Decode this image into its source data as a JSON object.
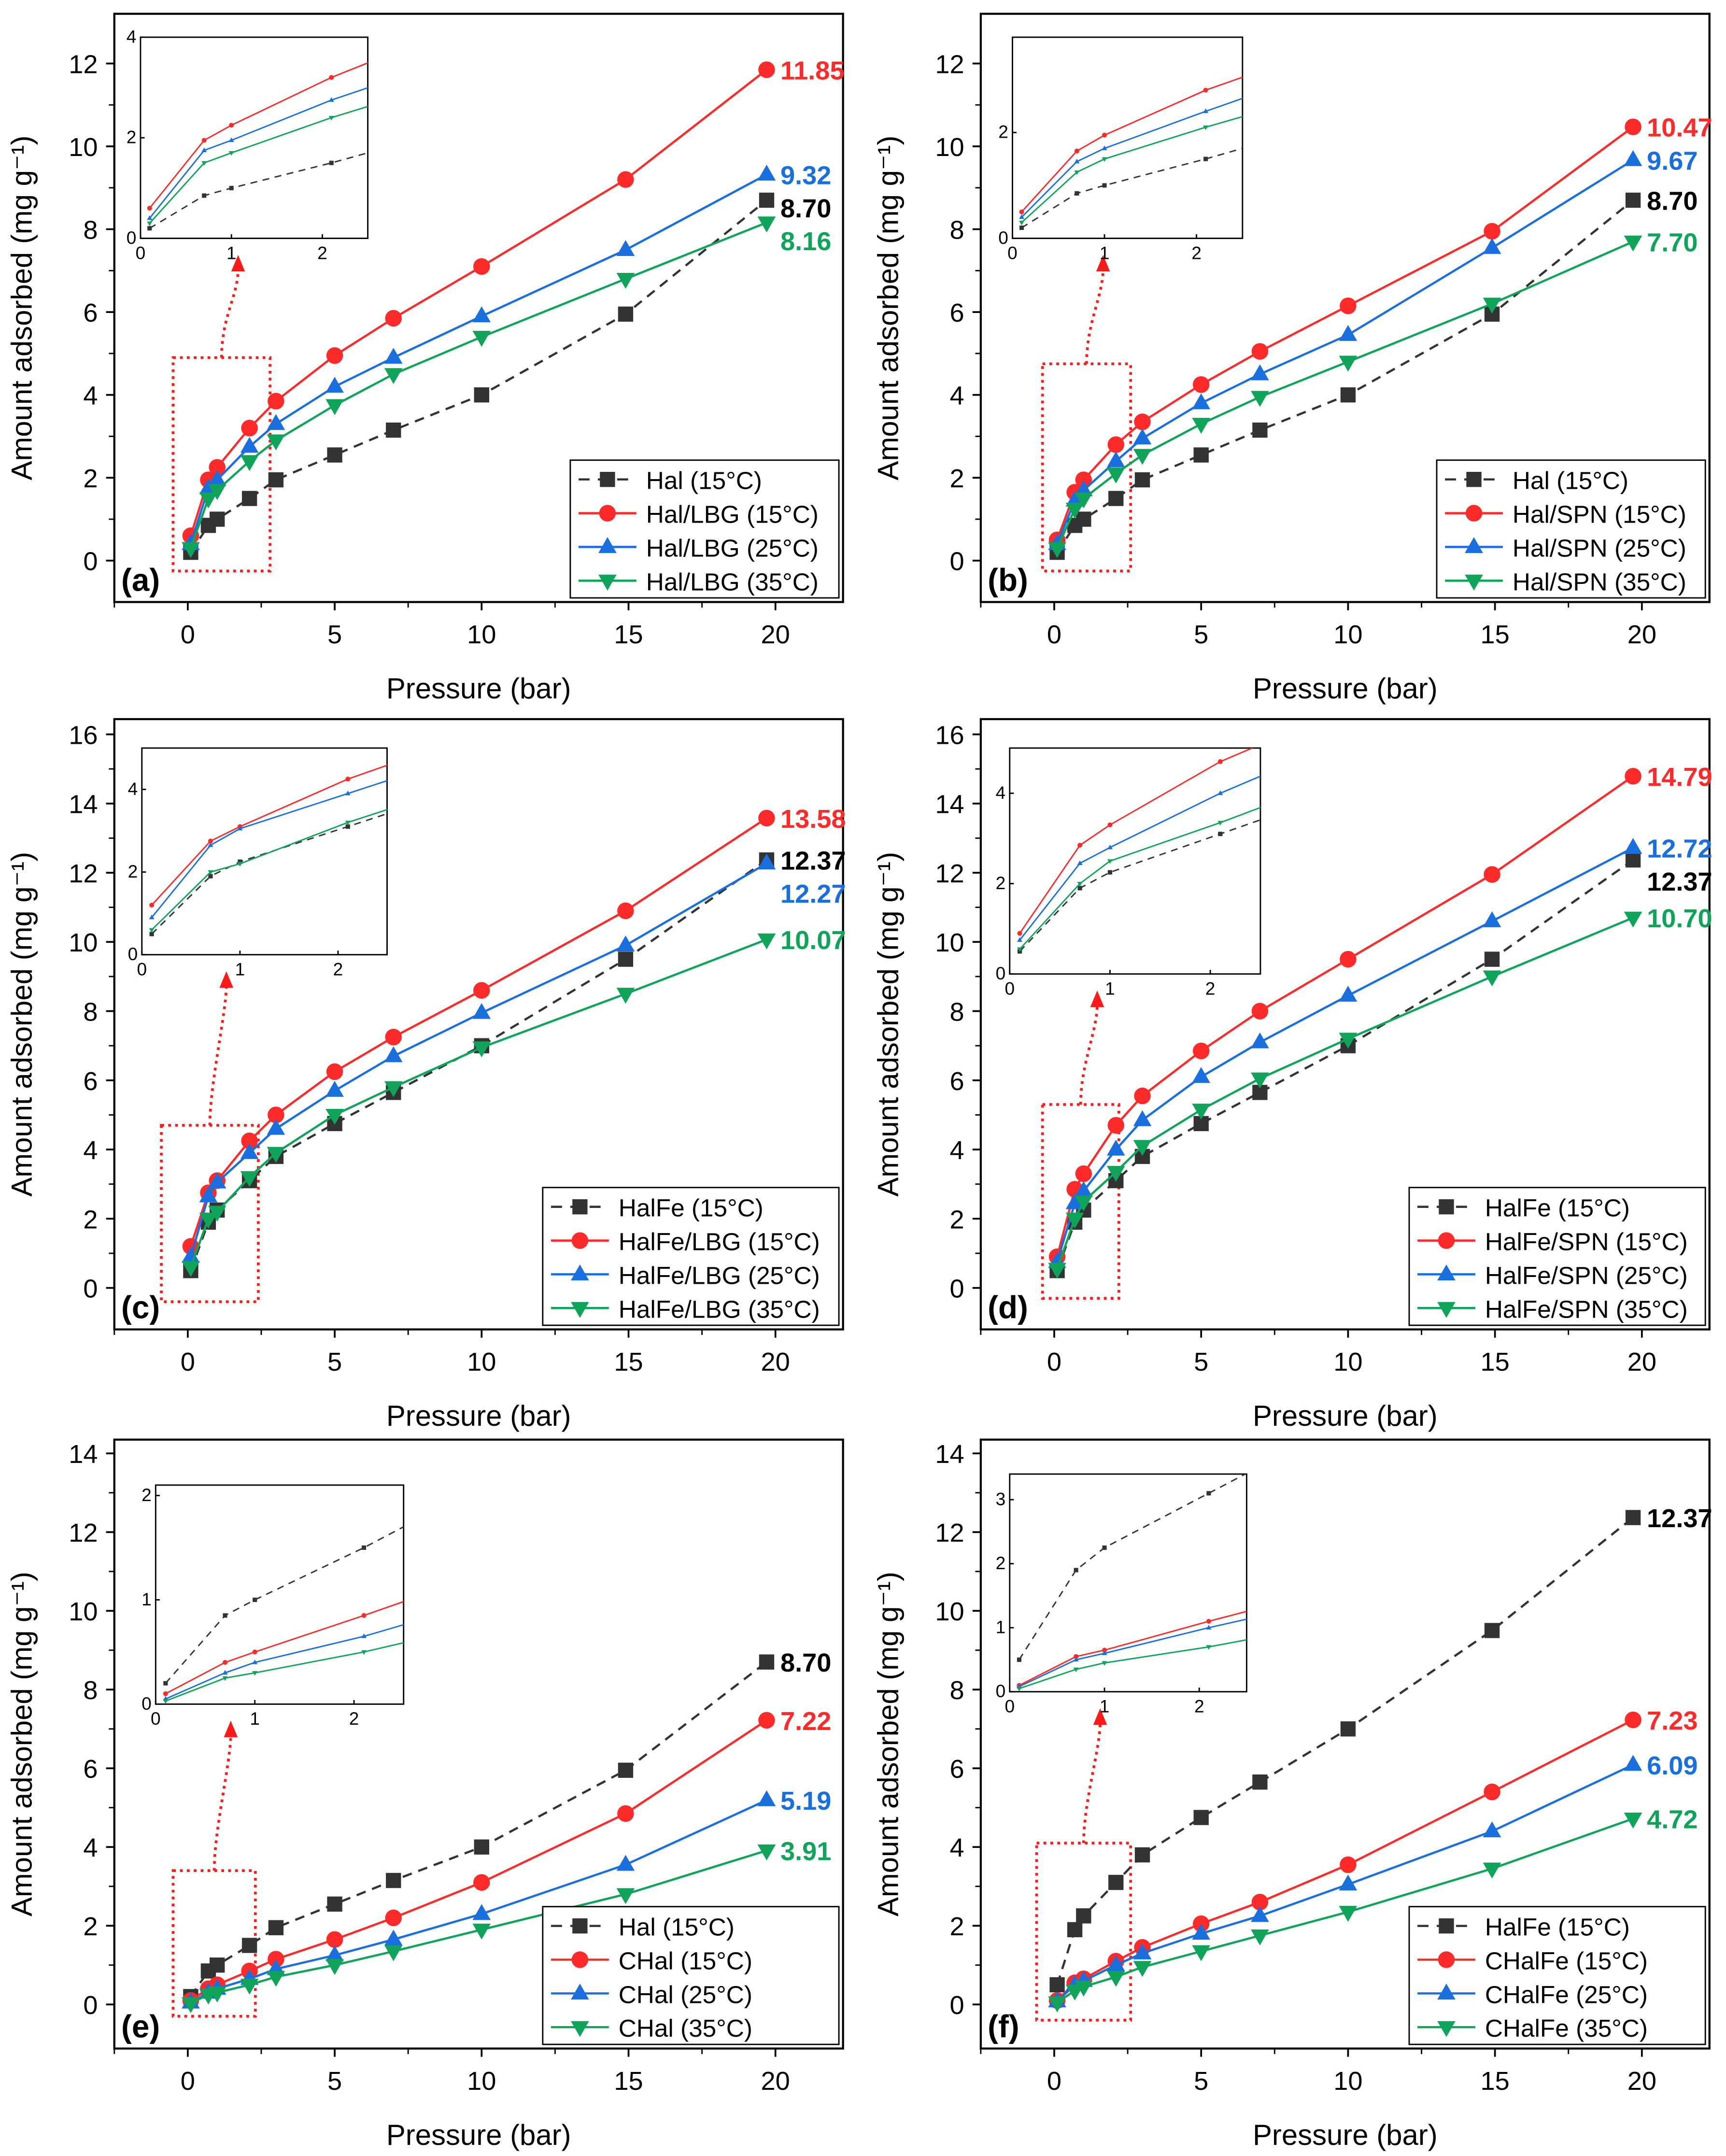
{
  "chart_data": [
    {
      "panel": "(a)",
      "type": "line",
      "xlabel": "Pressure (bar)",
      "ylabel": "Amount adsorbed (mg g⁻¹)",
      "xlim": [
        -2.5,
        22.3
      ],
      "ylim": [
        -1,
        13.2
      ],
      "xticks": [
        0,
        5,
        10,
        15,
        20
      ],
      "yticks": [
        0,
        2,
        4,
        6,
        8,
        10,
        12
      ],
      "x": [
        0.1,
        0.7,
        1.0,
        2.1,
        3.0,
        5.0,
        7.0,
        10.0,
        14.9,
        19.7
      ],
      "series": [
        {
          "name": "Hal (15°C)",
          "color": "#333333",
          "marker": "square",
          "dashed": true,
          "values": [
            0.2,
            0.85,
            1.0,
            1.5,
            1.95,
            2.55,
            3.15,
            4.0,
            5.95,
            8.7
          ],
          "end_label": "8.70"
        },
        {
          "name": "Hal/LBG (15°C)",
          "color": "#ff2a2a",
          "marker": "circle",
          "values": [
            0.6,
            1.95,
            2.25,
            3.2,
            3.85,
            4.95,
            5.85,
            7.1,
            9.2,
            11.85
          ],
          "end_label": "11.85"
        },
        {
          "name": "Hal/LBG (25°C)",
          "color": "#1a6fdf",
          "marker": "triangle-up",
          "values": [
            0.4,
            1.75,
            1.95,
            2.75,
            3.3,
            4.2,
            4.9,
            5.9,
            7.5,
            9.32
          ],
          "end_label": "9.32"
        },
        {
          "name": "Hal/LBG (35°C)",
          "color": "#10a35a",
          "marker": "triangle-down",
          "values": [
            0.3,
            1.5,
            1.7,
            2.4,
            2.9,
            3.75,
            4.5,
            5.4,
            6.8,
            8.16
          ],
          "end_label": "8.16"
        }
      ],
      "inset": {
        "xlim": [
          0,
          2.5
        ],
        "ylim": [
          0,
          4
        ],
        "xticks": [
          0,
          1,
          2
        ],
        "yticks": [
          0,
          2,
          4
        ]
      },
      "legend": "bottom-right"
    },
    {
      "panel": "(b)",
      "type": "line",
      "xlabel": "Pressure (bar)",
      "ylabel": "Amount adsorbed (mg g⁻¹)",
      "xlim": [
        -2.5,
        22.3
      ],
      "ylim": [
        -1,
        13.2
      ],
      "xticks": [
        0,
        5,
        10,
        15,
        20
      ],
      "yticks": [
        0,
        2,
        4,
        6,
        8,
        10,
        12
      ],
      "x": [
        0.1,
        0.7,
        1.0,
        2.1,
        3.0,
        5.0,
        7.0,
        10.0,
        14.9,
        19.7
      ],
      "series": [
        {
          "name": "Hal (15°C)",
          "color": "#333333",
          "marker": "square",
          "dashed": true,
          "values": [
            0.2,
            0.85,
            1.0,
            1.5,
            1.95,
            2.55,
            3.15,
            4.0,
            5.95,
            8.7
          ],
          "end_label": "8.70"
        },
        {
          "name": "Hal/SPN (15°C)",
          "color": "#ff2a2a",
          "marker": "circle",
          "values": [
            0.5,
            1.65,
            1.95,
            2.8,
            3.35,
            4.25,
            5.05,
            6.15,
            7.95,
            10.47
          ],
          "end_label": "10.47"
        },
        {
          "name": "Hal/SPN (25°C)",
          "color": "#1a6fdf",
          "marker": "triangle-up",
          "values": [
            0.4,
            1.45,
            1.7,
            2.4,
            2.95,
            3.8,
            4.5,
            5.45,
            7.55,
            9.67
          ],
          "end_label": "9.67"
        },
        {
          "name": "Hal/SPN (35°C)",
          "color": "#10a35a",
          "marker": "triangle-down",
          "values": [
            0.3,
            1.25,
            1.5,
            2.1,
            2.55,
            3.3,
            3.95,
            4.8,
            6.2,
            7.7
          ],
          "end_label": "7.70"
        }
      ],
      "inset": {
        "xlim": [
          0,
          2.5
        ],
        "ylim": [
          0,
          3.8
        ],
        "xticks": [
          0,
          1,
          2
        ],
        "yticks": [
          0,
          2
        ]
      },
      "legend": "bottom-right"
    },
    {
      "panel": "(c)",
      "type": "line",
      "xlabel": "Pressure (bar)",
      "ylabel": "Amount adsorbed (mg g⁻¹)",
      "xlim": [
        -2.5,
        22.3
      ],
      "ylim": [
        -1.2,
        16.44
      ],
      "xticks": [
        0,
        5,
        10,
        15,
        20
      ],
      "yticks": [
        0,
        2,
        4,
        6,
        8,
        10,
        12,
        14,
        16
      ],
      "x": [
        0.1,
        0.7,
        1.0,
        2.1,
        3.0,
        5.0,
        7.0,
        10.0,
        14.9,
        19.7
      ],
      "series": [
        {
          "name": "HalFe (15°C)",
          "color": "#333333",
          "marker": "square",
          "dashed": true,
          "values": [
            0.5,
            1.9,
            2.25,
            3.1,
            3.8,
            4.75,
            5.65,
            7.0,
            9.5,
            12.37
          ],
          "end_label": "12.37"
        },
        {
          "name": "HalFe/LBG (15°C)",
          "color": "#ff2a2a",
          "marker": "circle",
          "values": [
            1.2,
            2.75,
            3.1,
            4.25,
            5.0,
            6.25,
            7.25,
            8.6,
            10.9,
            13.58
          ],
          "end_label": "13.58"
        },
        {
          "name": "HalFe/LBG (25°C)",
          "color": "#1a6fdf",
          "marker": "triangle-up",
          "values": [
            0.9,
            2.65,
            3.05,
            3.9,
            4.6,
            5.7,
            6.7,
            7.95,
            9.9,
            12.27
          ],
          "end_label": "12.27"
        },
        {
          "name": "HalFe/LBG (35°C)",
          "color": "#10a35a",
          "marker": "triangle-down",
          "values": [
            0.6,
            2.0,
            2.2,
            3.2,
            3.9,
            5.0,
            5.8,
            6.95,
            8.5,
            10.07
          ],
          "end_label": "10.07"
        }
      ],
      "inset": {
        "xlim": [
          0,
          2.5
        ],
        "ylim": [
          0,
          5
        ],
        "xticks": [
          0,
          1,
          2
        ],
        "yticks": [
          0,
          2,
          4
        ]
      },
      "legend": "bottom-right"
    },
    {
      "panel": "(d)",
      "type": "line",
      "xlabel": "Pressure (bar)",
      "ylabel": "Amount adsorbed (mg g⁻¹)",
      "xlim": [
        -2.5,
        22.3
      ],
      "ylim": [
        -1.2,
        16.44
      ],
      "xticks": [
        0,
        5,
        10,
        15,
        20
      ],
      "yticks": [
        0,
        2,
        4,
        6,
        8,
        10,
        12,
        14,
        16
      ],
      "x": [
        0.1,
        0.7,
        1.0,
        2.1,
        3.0,
        5.0,
        7.0,
        10.0,
        14.9,
        19.7
      ],
      "series": [
        {
          "name": "HalFe (15°C)",
          "color": "#333333",
          "marker": "square",
          "dashed": true,
          "values": [
            0.5,
            1.9,
            2.25,
            3.1,
            3.8,
            4.75,
            5.65,
            7.0,
            9.5,
            12.37
          ],
          "end_label": "12.37"
        },
        {
          "name": "HalFe/SPN (15°C)",
          "color": "#ff2a2a",
          "marker": "circle",
          "values": [
            0.9,
            2.85,
            3.3,
            4.7,
            5.55,
            6.85,
            8.0,
            9.5,
            11.95,
            14.79
          ],
          "end_label": "14.79"
        },
        {
          "name": "HalFe/SPN (25°C)",
          "color": "#1a6fdf",
          "marker": "triangle-up",
          "values": [
            0.75,
            2.45,
            2.8,
            4.0,
            4.85,
            6.1,
            7.1,
            8.45,
            10.6,
            12.72
          ],
          "end_label": "12.72"
        },
        {
          "name": "HalFe/SPN (35°C)",
          "color": "#10a35a",
          "marker": "triangle-down",
          "values": [
            0.55,
            2.0,
            2.5,
            3.35,
            4.1,
            5.15,
            6.05,
            7.2,
            9.0,
            10.7
          ],
          "end_label": "10.70"
        }
      ],
      "inset": {
        "xlim": [
          0,
          2.5
        ],
        "ylim": [
          0,
          5
        ],
        "xticks": [
          0,
          1,
          2
        ],
        "yticks": [
          0,
          2,
          4
        ]
      },
      "legend": "bottom-right"
    },
    {
      "panel": "(e)",
      "type": "line",
      "xlabel": "Pressure (bar)",
      "ylabel": "Amount adsorbed (mg g⁻¹)",
      "xlim": [
        -2.5,
        22.3
      ],
      "ylim": [
        -1.12,
        14.35
      ],
      "xticks": [
        0,
        5,
        10,
        15,
        20
      ],
      "yticks": [
        0,
        2,
        4,
        6,
        8,
        10,
        12,
        14
      ],
      "x": [
        0.1,
        0.7,
        1.0,
        2.1,
        3.0,
        5.0,
        7.0,
        10.0,
        14.9,
        19.7
      ],
      "series": [
        {
          "name": "Hal (15°C)",
          "color": "#333333",
          "marker": "square",
          "dashed": true,
          "values": [
            0.2,
            0.85,
            1.0,
            1.5,
            1.95,
            2.55,
            3.15,
            4.0,
            5.95,
            8.7
          ],
          "end_label": "8.70"
        },
        {
          "name": "CHal (15°C)",
          "color": "#ff2a2a",
          "marker": "circle",
          "values": [
            0.1,
            0.4,
            0.5,
            0.85,
            1.15,
            1.65,
            2.2,
            3.1,
            4.85,
            7.22
          ],
          "end_label": "7.22"
        },
        {
          "name": "CHal (25°C)",
          "color": "#1a6fdf",
          "marker": "triangle-up",
          "values": [
            0.05,
            0.3,
            0.4,
            0.65,
            0.9,
            1.25,
            1.65,
            2.3,
            3.55,
            5.19
          ],
          "end_label": "5.19"
        },
        {
          "name": "CHal (35°C)",
          "color": "#10a35a",
          "marker": "triangle-down",
          "values": [
            0.03,
            0.25,
            0.3,
            0.5,
            0.7,
            1.0,
            1.35,
            1.9,
            2.8,
            3.91
          ],
          "end_label": "3.91"
        }
      ],
      "inset": {
        "xlim": [
          0,
          2.5
        ],
        "ylim": [
          0,
          2.1
        ],
        "xticks": [
          0,
          1,
          2
        ],
        "yticks": [
          0,
          1,
          2
        ]
      },
      "legend": "bottom-right"
    },
    {
      "panel": "(f)",
      "type": "line",
      "xlabel": "Pressure (bar)",
      "ylabel": "Amount adsorbed (mg g⁻¹)",
      "xlim": [
        -2.5,
        22.3
      ],
      "ylim": [
        -1.12,
        14.35
      ],
      "xticks": [
        0,
        5,
        10,
        15,
        20
      ],
      "yticks": [
        0,
        2,
        4,
        6,
        8,
        10,
        12,
        14
      ],
      "x": [
        0.1,
        0.7,
        1.0,
        2.1,
        3.0,
        5.0,
        7.0,
        10.0,
        14.9,
        19.7
      ],
      "series": [
        {
          "name": "HalFe (15°C)",
          "color": "#333333",
          "marker": "square",
          "dashed": true,
          "values": [
            0.5,
            1.9,
            2.25,
            3.1,
            3.8,
            4.75,
            5.65,
            7.0,
            9.5,
            12.37
          ],
          "end_label": "12.37"
        },
        {
          "name": "CHalFe (15°C)",
          "color": "#ff2a2a",
          "marker": "circle",
          "values": [
            0.1,
            0.55,
            0.65,
            1.1,
            1.45,
            2.05,
            2.6,
            3.55,
            5.4,
            7.23
          ],
          "end_label": "7.23"
        },
        {
          "name": "CHalFe (25°C)",
          "color": "#1a6fdf",
          "marker": "triangle-up",
          "values": [
            0.08,
            0.5,
            0.6,
            1.0,
            1.3,
            1.8,
            2.25,
            3.05,
            4.4,
            6.09
          ],
          "end_label": "6.09"
        },
        {
          "name": "CHalFe (35°C)",
          "color": "#10a35a",
          "marker": "triangle-down",
          "values": [
            0.05,
            0.35,
            0.45,
            0.7,
            0.95,
            1.35,
            1.75,
            2.35,
            3.45,
            4.72
          ],
          "end_label": "4.72"
        }
      ],
      "inset": {
        "xlim": [
          0,
          2.5
        ],
        "ylim": [
          0,
          3.4
        ],
        "xticks": [
          0,
          1,
          2,
          3
        ],
        "yticks": [
          0,
          1,
          2,
          3
        ]
      },
      "legend": "bottom-right"
    }
  ]
}
